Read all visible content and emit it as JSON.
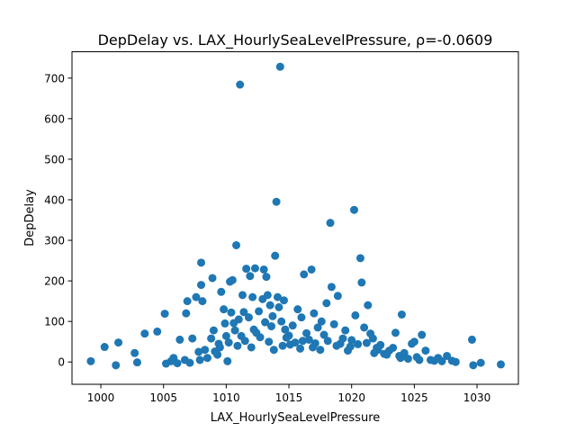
{
  "chart_data": {
    "type": "scatter",
    "title": "DepDelay vs. LAX_HourlySeaLevelPressure, ρ=-0.0609",
    "xlabel": "LAX_HourlySeaLevelPressure",
    "ylabel": "DepDelay",
    "xlim": [
      997.7,
      1033.3
    ],
    "ylim": [
      -55,
      765
    ],
    "xticks": [
      1000,
      1005,
      1010,
      1015,
      1020,
      1025,
      1030
    ],
    "yticks": [
      0,
      100,
      200,
      300,
      400,
      500,
      600,
      700
    ],
    "grid": false,
    "legend": "none",
    "color": "#1f77b4",
    "series": [
      {
        "points": [
          [
            999.2,
            2
          ],
          [
            1000.3,
            37
          ],
          [
            1001.2,
            -8
          ],
          [
            1001.4,
            48
          ],
          [
            1002.7,
            22
          ],
          [
            1002.9,
            -1
          ],
          [
            1003.5,
            70
          ],
          [
            1004.5,
            75
          ],
          [
            1005.1,
            119
          ],
          [
            1005.2,
            -4
          ],
          [
            1005.6,
            2
          ],
          [
            1005.8,
            10
          ],
          [
            1006.1,
            -3
          ],
          [
            1006.3,
            55
          ],
          [
            1006.7,
            5
          ],
          [
            1006.8,
            120
          ],
          [
            1006.9,
            150
          ],
          [
            1007.1,
            -2
          ],
          [
            1007.3,
            58
          ],
          [
            1007.6,
            160
          ],
          [
            1007.8,
            25
          ],
          [
            1007.9,
            5
          ],
          [
            1008.0,
            190
          ],
          [
            1008.0,
            245
          ],
          [
            1008.1,
            150
          ],
          [
            1008.3,
            30
          ],
          [
            1008.5,
            10
          ],
          [
            1008.8,
            58
          ],
          [
            1008.9,
            207
          ],
          [
            1009.0,
            78
          ],
          [
            1009.3,
            18
          ],
          [
            1009.4,
            45
          ],
          [
            1009.6,
            173
          ],
          [
            1009.8,
            130
          ],
          [
            1009.9,
            95
          ],
          [
            1010.0,
            64
          ],
          [
            1010.1,
            2
          ],
          [
            1010.3,
            198
          ],
          [
            1010.4,
            122
          ],
          [
            1010.5,
            202
          ],
          [
            1010.6,
            96
          ],
          [
            1010.7,
            78
          ],
          [
            1010.8,
            288
          ],
          [
            1011.0,
            105
          ],
          [
            1011.1,
            684
          ],
          [
            1011.3,
            165
          ],
          [
            1011.4,
            123
          ],
          [
            1011.6,
            230
          ],
          [
            1011.8,
            110
          ],
          [
            1011.9,
            212
          ],
          [
            1012.1,
            160
          ],
          [
            1012.2,
            80
          ],
          [
            1012.3,
            231
          ],
          [
            1012.6,
            125
          ],
          [
            1012.9,
            155
          ],
          [
            1013.0,
            228
          ],
          [
            1013.1,
            98
          ],
          [
            1013.2,
            210
          ],
          [
            1013.3,
            165
          ],
          [
            1013.5,
            140
          ],
          [
            1013.7,
            113
          ],
          [
            1013.9,
            262
          ],
          [
            1014.0,
            395
          ],
          [
            1014.1,
            160
          ],
          [
            1014.2,
            135
          ],
          [
            1014.3,
            728
          ],
          [
            1014.4,
            100
          ],
          [
            1014.6,
            152
          ],
          [
            1014.7,
            80
          ],
          [
            1015.0,
            65
          ],
          [
            1015.3,
            90
          ],
          [
            1015.7,
            130
          ],
          [
            1016.0,
            110
          ],
          [
            1016.2,
            216
          ],
          [
            1016.6,
            55
          ],
          [
            1016.8,
            228
          ],
          [
            1017.0,
            120
          ],
          [
            1017.3,
            85
          ],
          [
            1017.6,
            100
          ],
          [
            1018.0,
            145
          ],
          [
            1018.3,
            343
          ],
          [
            1018.4,
            185
          ],
          [
            1018.6,
            93
          ],
          [
            1018.9,
            163
          ],
          [
            1019.1,
            45
          ],
          [
            1019.5,
            78
          ],
          [
            1019.9,
            38
          ],
          [
            1020.2,
            375
          ],
          [
            1020.3,
            115
          ],
          [
            1020.7,
            256
          ],
          [
            1020.8,
            196
          ],
          [
            1021.0,
            85
          ],
          [
            1021.3,
            140
          ],
          [
            1021.5,
            70
          ],
          [
            1021.7,
            58
          ],
          [
            1022.0,
            35
          ],
          [
            1022.3,
            42
          ],
          [
            1022.6,
            20
          ],
          [
            1023.0,
            28
          ],
          [
            1023.3,
            35
          ],
          [
            1023.5,
            72
          ],
          [
            1023.8,
            15
          ],
          [
            1024.0,
            117
          ],
          [
            1024.2,
            22
          ],
          [
            1024.5,
            8
          ],
          [
            1024.8,
            45
          ],
          [
            1025.0,
            50
          ],
          [
            1025.4,
            5
          ],
          [
            1025.6,
            67
          ],
          [
            1025.9,
            28
          ],
          [
            1026.3,
            5
          ],
          [
            1026.9,
            10
          ],
          [
            1027.2,
            2
          ],
          [
            1027.6,
            15
          ],
          [
            1028.0,
            3
          ],
          [
            1028.3,
            0
          ],
          [
            1029.6,
            55
          ],
          [
            1029.7,
            -8
          ],
          [
            1030.3,
            -2
          ],
          [
            1031.9,
            -6
          ],
          [
            1012.4,
            72
          ],
          [
            1012.7,
            61
          ],
          [
            1013.4,
            50
          ],
          [
            1013.6,
            88
          ],
          [
            1014.8,
            60
          ],
          [
            1015.1,
            43
          ],
          [
            1015.5,
            48
          ],
          [
            1016.1,
            52
          ],
          [
            1016.4,
            71
          ],
          [
            1017.1,
            46
          ],
          [
            1017.8,
            67
          ],
          [
            1018.1,
            52
          ],
          [
            1018.8,
            40
          ],
          [
            1019.3,
            58
          ],
          [
            1020.0,
            54
          ],
          [
            1020.5,
            44
          ],
          [
            1021.2,
            47
          ],
          [
            1022.1,
            30
          ],
          [
            1011.5,
            52
          ],
          [
            1011.2,
            64
          ],
          [
            1010.9,
            40
          ],
          [
            1010.2,
            48
          ],
          [
            1009.5,
            36
          ],
          [
            1009.1,
            26
          ],
          [
            1014.5,
            40
          ],
          [
            1015.9,
            33
          ],
          [
            1016.9,
            36
          ],
          [
            1017.5,
            30
          ],
          [
            1019.7,
            28
          ],
          [
            1021.8,
            22
          ],
          [
            1012.0,
            36
          ],
          [
            1013.8,
            30
          ],
          [
            1022.8,
            18
          ],
          [
            1023.9,
            10
          ],
          [
            1025.2,
            12
          ],
          [
            1026.6,
            3
          ]
        ]
      }
    ]
  }
}
